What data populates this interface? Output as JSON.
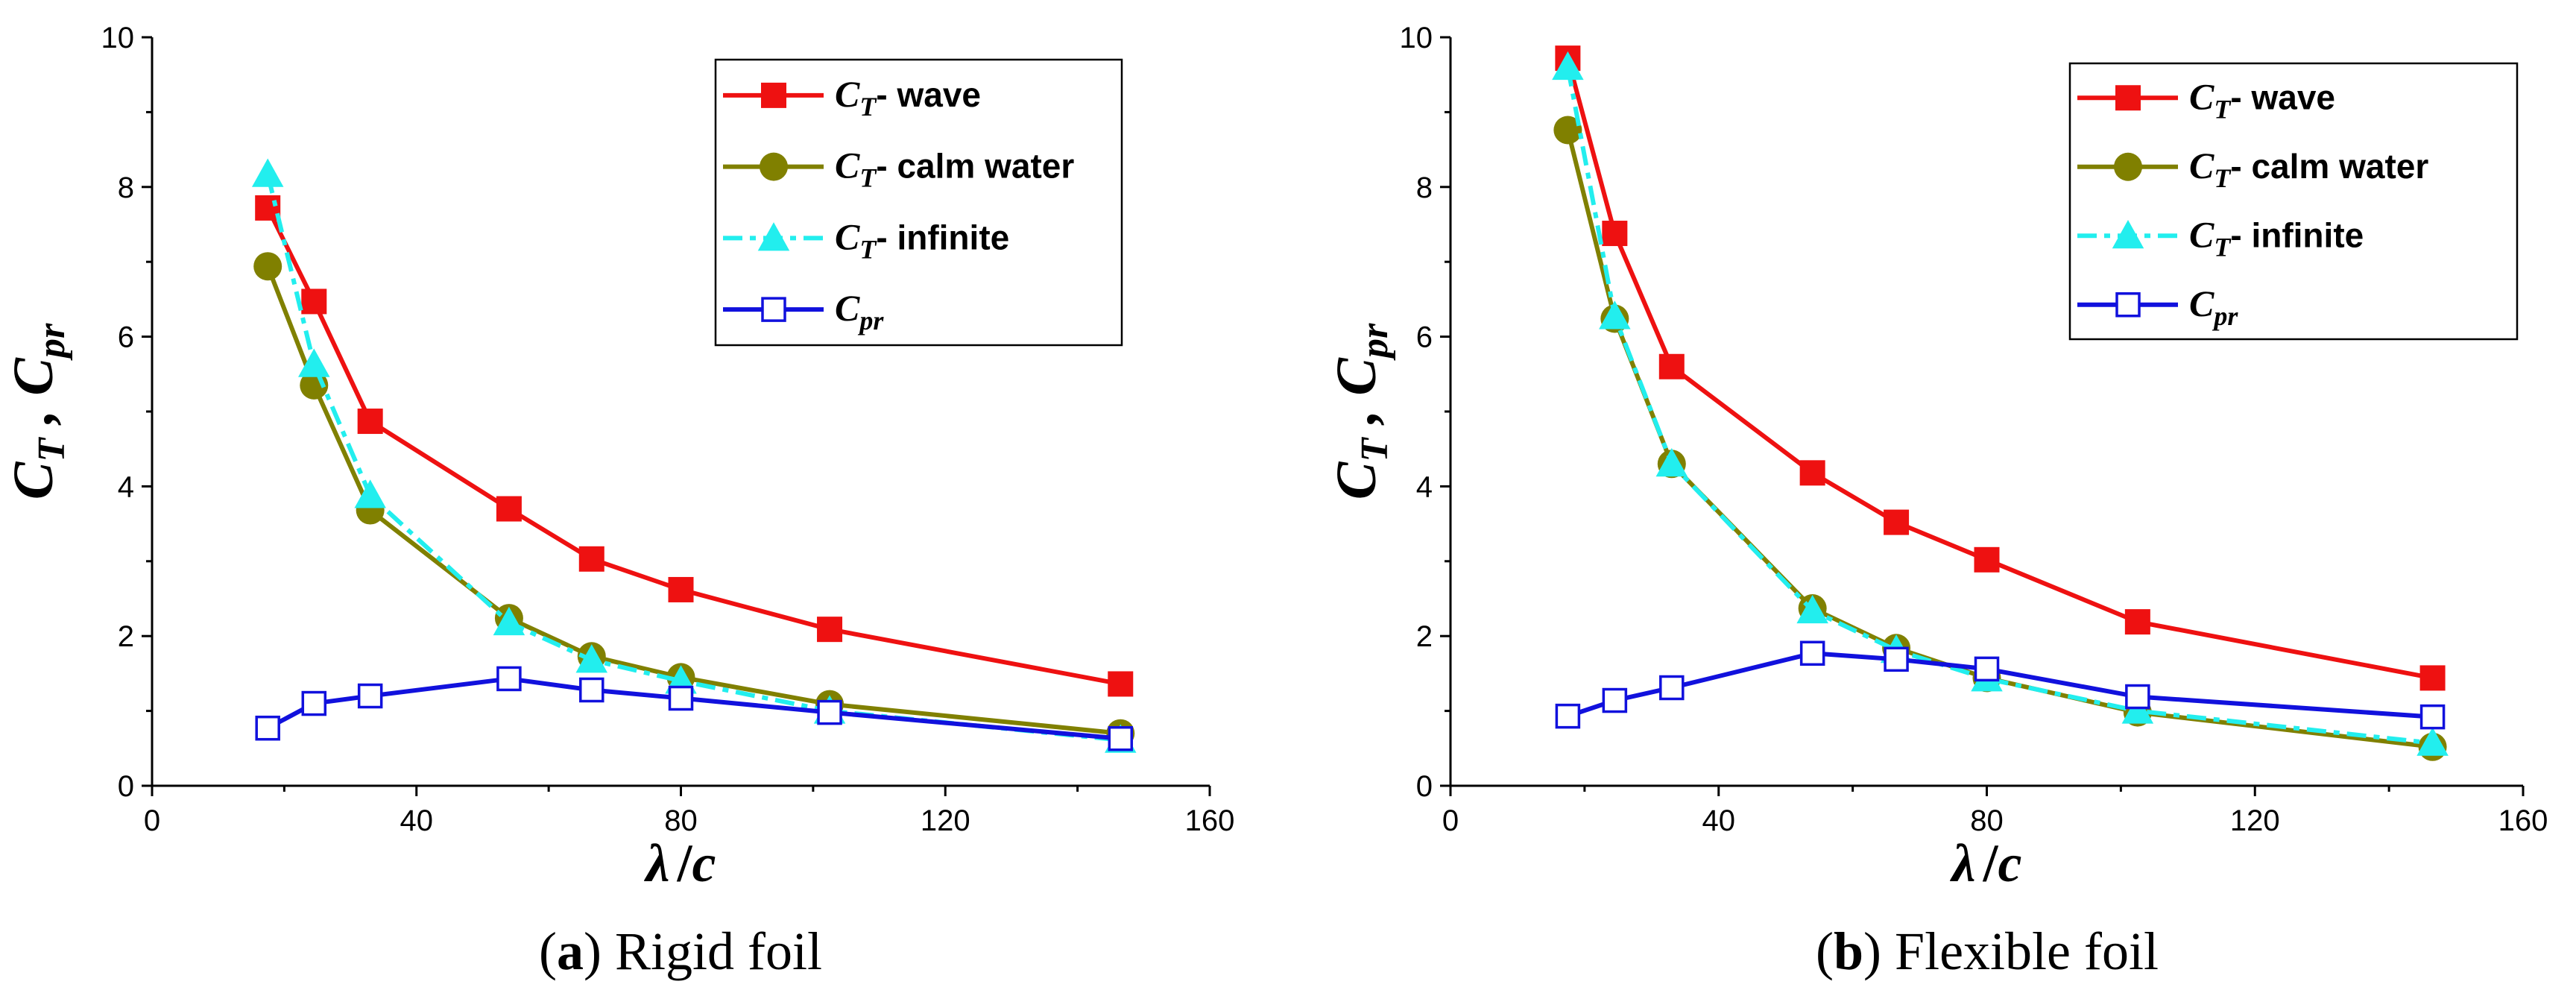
{
  "chart_data": [
    {
      "type": "line",
      "caption_letter": "a",
      "caption_text": "Rigid foil",
      "xlabel_main": "λ",
      "xlabel_sep": "/",
      "xlabel_tail": "c",
      "ylabel": {
        "c1": "C",
        "s1": "T",
        "sep": " , ",
        "c2": "C",
        "s2": "pr"
      },
      "xlim": [
        0,
        160
      ],
      "ylim": [
        0,
        10
      ],
      "xticks": [
        "0",
        "40",
        "80",
        "120",
        "160"
      ],
      "yticks": [
        "0",
        "2",
        "4",
        "6",
        "8",
        "10"
      ],
      "legend_position": "top-right",
      "series": [
        {
          "key": "wave",
          "sym": "C",
          "sub": "T",
          "name": "- wave",
          "color": "#ee1111",
          "marker": "square-filled",
          "dash": "",
          "x": [
            17.5,
            24.5,
            33,
            54,
            66.5,
            80,
            102.5,
            146.5
          ],
          "y": [
            7.72,
            6.47,
            4.87,
            3.7,
            3.03,
            2.62,
            2.09,
            1.36
          ]
        },
        {
          "key": "calm",
          "sym": "C",
          "sub": "T",
          "name": "- calm water",
          "color": "#808000",
          "marker": "circle-filled",
          "dash": "",
          "x": [
            17.5,
            24.5,
            33,
            54,
            66.5,
            80,
            102.5,
            146.5
          ],
          "y": [
            6.94,
            5.35,
            3.68,
            2.24,
            1.73,
            1.45,
            1.09,
            0.7
          ]
        },
        {
          "key": "inf",
          "sym": "C",
          "sub": "T",
          "name": "- infinite",
          "color": "#22eeee",
          "marker": "triangle-filled",
          "dash": "26,10,8,10",
          "x": [
            17.5,
            24.5,
            33,
            54,
            66.5,
            80,
            102.5,
            146.5
          ],
          "y": [
            8.17,
            5.63,
            3.88,
            2.18,
            1.68,
            1.4,
            1.0,
            0.61
          ]
        },
        {
          "key": "cpr",
          "sym": "C",
          "sub": "pr",
          "name": "",
          "color": "#1111dd",
          "marker": "square-open",
          "dash": "",
          "x": [
            17.5,
            24.5,
            33,
            54,
            66.5,
            80,
            102.5,
            146.5
          ],
          "y": [
            0.77,
            1.1,
            1.2,
            1.43,
            1.28,
            1.17,
            0.98,
            0.63
          ]
        }
      ]
    },
    {
      "type": "line",
      "caption_letter": "b",
      "caption_text": "Flexible foil",
      "xlabel_main": "λ",
      "xlabel_sep": "/",
      "xlabel_tail": "c",
      "ylabel": {
        "c1": "C",
        "s1": "T",
        "sep": " , ",
        "c2": "C",
        "s2": "pr"
      },
      "xlim": [
        0,
        160
      ],
      "ylim": [
        0,
        10
      ],
      "xticks": [
        "0",
        "40",
        "80",
        "120",
        "160"
      ],
      "yticks": [
        "0",
        "2",
        "4",
        "6",
        "8",
        "10"
      ],
      "legend_position": "top-right",
      "series": [
        {
          "key": "wave",
          "sym": "C",
          "sub": "T",
          "name": "- wave",
          "color": "#ee1111",
          "marker": "square-filled",
          "dash": "",
          "x": [
            17.5,
            24.5,
            33,
            54,
            66.5,
            80,
            102.5,
            146.5
          ],
          "y": [
            9.72,
            7.38,
            5.6,
            4.18,
            3.52,
            3.02,
            2.19,
            1.44
          ]
        },
        {
          "key": "calm",
          "sym": "C",
          "sub": "T",
          "name": "- calm water",
          "color": "#808000",
          "marker": "circle-filled",
          "dash": "",
          "x": [
            17.5,
            24.5,
            33,
            54,
            66.5,
            80,
            102.5,
            146.5
          ],
          "y": [
            8.76,
            6.24,
            4.3,
            2.37,
            1.84,
            1.44,
            0.98,
            0.52
          ]
        },
        {
          "key": "inf",
          "sym": "C",
          "sub": "T",
          "name": "- infinite",
          "color": "#22eeee",
          "marker": "triangle-filled",
          "dash": "26,10,8,10",
          "x": [
            17.5,
            24.5,
            33,
            54,
            66.5,
            80,
            102.5,
            146.5
          ],
          "y": [
            9.6,
            6.27,
            4.3,
            2.34,
            1.81,
            1.43,
            1.0,
            0.57
          ]
        },
        {
          "key": "cpr",
          "sym": "C",
          "sub": "pr",
          "name": "",
          "color": "#1111dd",
          "marker": "square-open",
          "dash": "",
          "x": [
            17.5,
            24.5,
            33,
            54,
            66.5,
            80,
            102.5,
            146.5
          ],
          "y": [
            0.93,
            1.14,
            1.31,
            1.77,
            1.69,
            1.56,
            1.19,
            0.92
          ]
        }
      ]
    }
  ]
}
